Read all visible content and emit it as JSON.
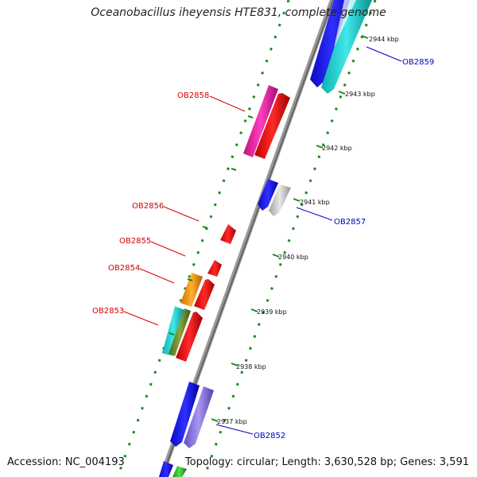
{
  "title": "Oceanobacillus iheyensis HTE831, complete genome",
  "footer": {
    "accession": "Accession: NC_004193",
    "summary": "Topology: circular; Length: 3,630,528 bp; Genes: 3,591"
  },
  "ticks": [
    {
      "label": "2944 kbp",
      "position_kbp": 2944
    },
    {
      "label": "2943 kbp",
      "position_kbp": 2943
    },
    {
      "label": "2942 kbp",
      "position_kbp": 2942
    },
    {
      "label": "2941 kbp",
      "position_kbp": 2941
    },
    {
      "label": "2940 kbp",
      "position_kbp": 2940
    },
    {
      "label": "2939 kbp",
      "position_kbp": 2939
    },
    {
      "label": "2938 kbp",
      "position_kbp": 2938
    },
    {
      "label": "2937 kbp",
      "position_kbp": 2937
    }
  ],
  "gene_labels": [
    {
      "id": "OB2859",
      "strand": "plus"
    },
    {
      "id": "OB2858",
      "strand": "minus"
    },
    {
      "id": "OB2857",
      "strand": "plus"
    },
    {
      "id": "OB2856",
      "strand": "minus"
    },
    {
      "id": "OB2855",
      "strand": "minus"
    },
    {
      "id": "OB2854",
      "strand": "minus"
    },
    {
      "id": "OB2853",
      "strand": "minus"
    },
    {
      "id": "OB2852",
      "strand": "plus"
    }
  ],
  "colors": {
    "backbone": "#888888",
    "tick_mark": "#1a8c1a",
    "minus_label": "#d40000",
    "plus_label": "#0000c0",
    "blue": "#1414e6",
    "cyan": "#20d4d4",
    "magenta": "#f020a8",
    "red": "#ff1010",
    "grey": "#c8c8c8",
    "orange": "#ff9a10",
    "olive": "#6a8c2a",
    "lavender": "#8878e0",
    "green": "#30c030"
  }
}
